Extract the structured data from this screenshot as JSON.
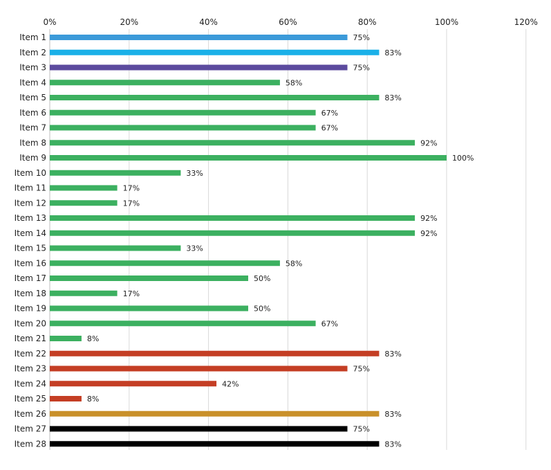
{
  "chart_data": {
    "type": "bar",
    "orientation": "horizontal",
    "title": "",
    "xlabel": "",
    "ylabel": "",
    "xlim": [
      0,
      120
    ],
    "x_ticks": [
      0,
      20,
      40,
      60,
      80,
      100,
      120
    ],
    "x_tick_labels": [
      "0%",
      "20%",
      "40%",
      "60%",
      "80%",
      "100%",
      "120%"
    ],
    "x_axis_position": "top",
    "grid": true,
    "legend": "none",
    "categories": [
      "Item 1",
      "Item 2",
      "Item 3",
      "Item 4",
      "Item 5",
      "Item 6",
      "Item 7",
      "Item 8",
      "Item 9",
      "Item 10",
      "Item 11",
      "Item 12",
      "Item 13",
      "Item 14",
      "Item 15",
      "Item 16",
      "Item 17",
      "Item 18",
      "Item 19",
      "Item 20",
      "Item 21",
      "Item 22",
      "Item 23",
      "Item 24",
      "Item 25",
      "Item 26",
      "Item 27",
      "Item 28"
    ],
    "values": [
      75,
      83,
      75,
      58,
      83,
      67,
      67,
      92,
      100,
      33,
      17,
      17,
      92,
      92,
      33,
      58,
      50,
      17,
      50,
      67,
      8,
      83,
      75,
      42,
      8,
      83,
      75,
      83
    ],
    "data_labels": [
      "75%",
      "83%",
      "75%",
      "58%",
      "83%",
      "67%",
      "67%",
      "92%",
      "100%",
      "33%",
      "17%",
      "17%",
      "92%",
      "92%",
      "33%",
      "58%",
      "50%",
      "17%",
      "50%",
      "67%",
      "8%",
      "83%",
      "75%",
      "42%",
      "8%",
      "83%",
      "75%",
      "83%"
    ],
    "colors": [
      "#3b9ad9",
      "#1ab0e8",
      "#5b4a9e",
      "#3cb060",
      "#3cb060",
      "#3cb060",
      "#3cb060",
      "#3cb060",
      "#3cb060",
      "#3cb060",
      "#3cb060",
      "#3cb060",
      "#3cb060",
      "#3cb060",
      "#3cb060",
      "#3cb060",
      "#3cb060",
      "#3cb060",
      "#3cb060",
      "#3cb060",
      "#3cb060",
      "#c43e24",
      "#c43e24",
      "#c43e24",
      "#c43e24",
      "#c9902a",
      "#000000",
      "#000000"
    ]
  }
}
